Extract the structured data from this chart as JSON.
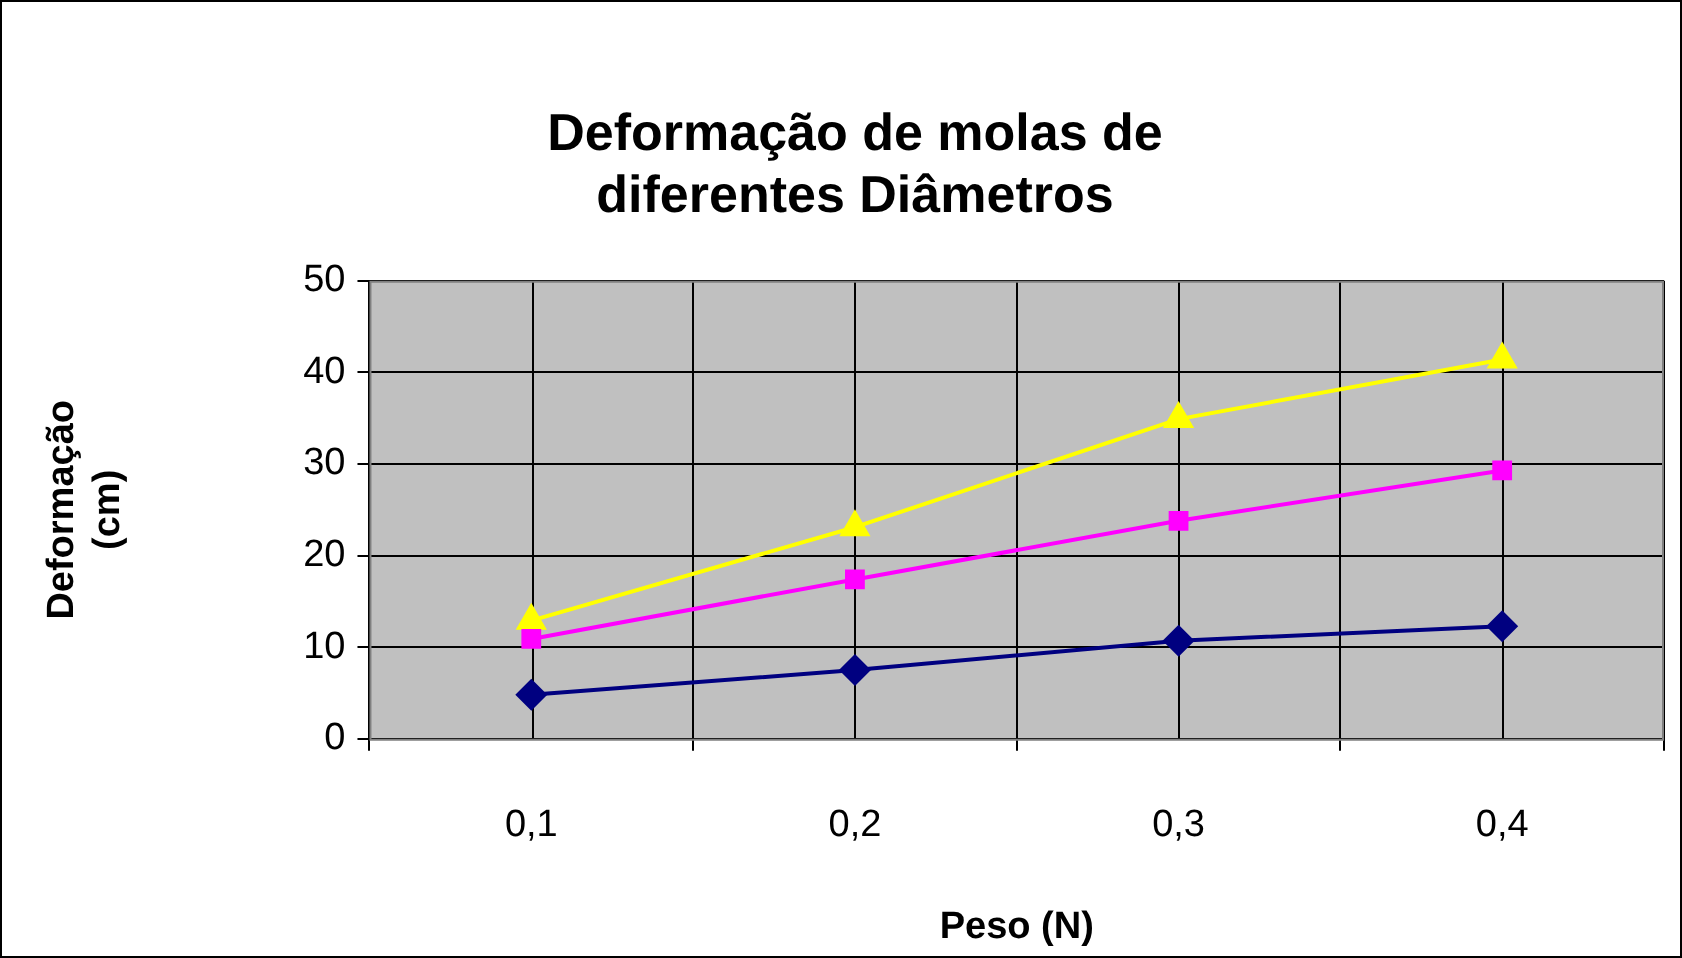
{
  "chart_data": {
    "type": "line",
    "title": "Deformação de molas de diferentes Diâmetros",
    "xlabel": "Peso (N)",
    "ylabel": "Deformação (cm)",
    "categories": [
      "0,1",
      "0,2",
      "0,3",
      "0,4"
    ],
    "series": [
      {
        "color": "#000080",
        "marker": "diamond",
        "values": [
          4.8,
          7.5,
          10.7,
          12.3
        ]
      },
      {
        "color": "#ff00ff",
        "marker": "square",
        "values": [
          10.9,
          17.4,
          23.8,
          29.3
        ]
      },
      {
        "color": "#ffff00",
        "marker": "triangle",
        "values": [
          12.9,
          23.1,
          34.9,
          41.4
        ]
      }
    ],
    "ylim": [
      0,
      50
    ],
    "yticks": [
      0,
      10,
      20,
      30,
      40,
      50
    ],
    "grid": true,
    "legend": false,
    "line_style": "solid"
  }
}
